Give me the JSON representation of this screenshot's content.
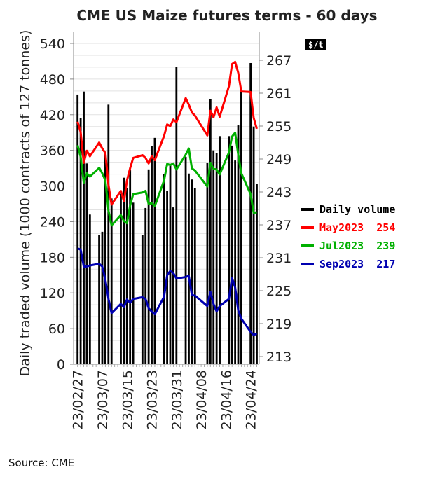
{
  "chart_data": {
    "type": "bar+line",
    "title": "CME US Maize futures terms - 60 days",
    "ylabel": "Daily traded volume (1000 contracts of 127 tonnes)",
    "y2label": "$/t",
    "ylim": [
      0,
      540
    ],
    "yticks": [
      0,
      60,
      120,
      180,
      240,
      300,
      360,
      420,
      480,
      540
    ],
    "y2lim": [
      213,
      267
    ],
    "y2ticks": [
      213,
      219,
      225,
      231,
      237,
      243,
      249,
      255,
      261,
      267
    ],
    "xticks": [
      "23/02/27",
      "23/03/07",
      "23/03/15",
      "23/03/23",
      "23/03/31",
      "23/04/08",
      "23/04/16",
      "23/04/24"
    ],
    "grid": true,
    "legend_position": "right",
    "dates": [
      "2023-02-27",
      "2023-02-28",
      "2023-03-01",
      "2023-03-02",
      "2023-03-03",
      "2023-03-06",
      "2023-03-07",
      "2023-03-08",
      "2023-03-09",
      "2023-03-10",
      "2023-03-13",
      "2023-03-14",
      "2023-03-15",
      "2023-03-16",
      "2023-03-17",
      "2023-03-20",
      "2023-03-21",
      "2023-03-22",
      "2023-03-23",
      "2023-03-24",
      "2023-03-27",
      "2023-03-28",
      "2023-03-29",
      "2023-03-30",
      "2023-03-31",
      "2023-04-03",
      "2023-04-04",
      "2023-04-05",
      "2023-04-06",
      "2023-04-10",
      "2023-04-11",
      "2023-04-12",
      "2023-04-13",
      "2023-04-14",
      "2023-04-17",
      "2023-04-18",
      "2023-04-19",
      "2023-04-20",
      "2023-04-21",
      "2023-04-24",
      "2023-04-25",
      "2023-04-26"
    ],
    "series": [
      {
        "name": "Daily volume",
        "label": "Daily volume",
        "kind": "bar",
        "axis": "left",
        "color": "#000000",
        "values": [
          454,
          414,
          459,
          338,
          252,
          218,
          223,
          356,
          437,
          279,
          287,
          314,
          297,
          327,
          272,
          217,
          263,
          328,
          367,
          381,
          320,
          292,
          334,
          264,
          500,
          349,
          321,
          311,
          296,
          339,
          446,
          360,
          355,
          384,
          384,
          368,
          343,
          402,
          460,
          507,
          400,
          303
        ]
      },
      {
        "name": "May2023",
        "label": "May2023  254",
        "kind": "line",
        "axis": "right",
        "color": "#ff0000",
        "values": [
          255.8,
          253.9,
          248.3,
          250.5,
          249.5,
          252,
          250.9,
          250.1,
          244.3,
          240.7,
          243.2,
          241.3,
          245.1,
          247.3,
          249.2,
          249.7,
          249.2,
          248.2,
          249.5,
          248.8,
          253.2,
          255.3,
          255,
          256.2,
          255.7,
          260.1,
          258.9,
          257.5,
          256.9,
          253.3,
          257.8,
          256.6,
          258.4,
          256.7,
          262.3,
          266.3,
          266.7,
          264.7,
          261.3,
          261.2,
          256.5,
          254.5
        ]
      },
      {
        "name": "Jul2023",
        "label": "Jul2023  239",
        "kind": "line",
        "axis": "right",
        "color": "#00b000",
        "values": [
          251.5,
          249.4,
          244.7,
          246.4,
          245.8,
          247.4,
          246.4,
          245.1,
          239.6,
          236.9,
          238.8,
          237.7,
          237.3,
          240.5,
          242.6,
          242.9,
          243.2,
          240.8,
          241,
          240.4,
          245.1,
          248.1,
          247.9,
          248.2,
          247.1,
          249.8,
          250.9,
          247.3,
          246.9,
          244,
          248.3,
          247.2,
          247.1,
          246.2,
          250.2,
          253.1,
          253.8,
          249.8,
          246.4,
          242.6,
          239.2,
          239.3
        ]
      },
      {
        "name": "Sep2023",
        "label": "Sep2023  217",
        "kind": "line",
        "axis": "right",
        "color": "#0000b0",
        "values": [
          232.7,
          232.5,
          229.4,
          229.4,
          229.6,
          229.9,
          229.4,
          227,
          223.5,
          220.9,
          222.6,
          222,
          223.4,
          222.8,
          223.5,
          223.8,
          223.5,
          221.8,
          221.2,
          220.7,
          223.9,
          227.8,
          228.6,
          228.2,
          227.2,
          227.5,
          227.7,
          224.2,
          224.1,
          222.2,
          224.8,
          222.6,
          221.2,
          222.2,
          223.5,
          227.3,
          225.6,
          221.4,
          219.9,
          217.5,
          216.9,
          217.2
        ]
      }
    ]
  },
  "source": "Source: CME"
}
